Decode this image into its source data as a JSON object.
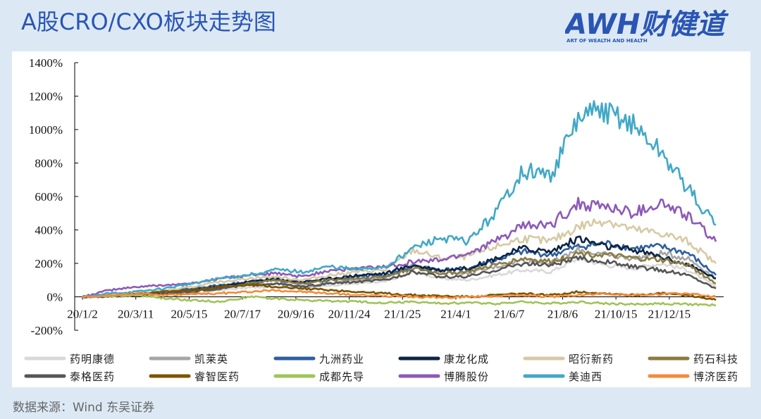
{
  "header": {
    "title": "A股CRO/CXO板块走势图",
    "logo_text": "AWH财健道",
    "logo_tagline": "ART OF WEALTH AND HEALTH"
  },
  "footer": {
    "source": "数据来源：Wind 东吴证券"
  },
  "colors": {
    "background": "#dce9f5",
    "title": "#2a55b4",
    "logo": "#2a55b4"
  },
  "chart_data": {
    "type": "line",
    "title": "",
    "xlabel": "",
    "ylabel": "",
    "ylim": [
      -200,
      1400
    ],
    "y_ticks": [
      "1400%",
      "1200%",
      "1000%",
      "800%",
      "600%",
      "400%",
      "200%",
      "0%",
      "-200%"
    ],
    "y_tick_values": [
      1400,
      1200,
      1000,
      800,
      600,
      400,
      200,
      0,
      -200
    ],
    "x_ticks": [
      "20/1/2",
      "20/3/11",
      "20/5/15",
      "20/7/17",
      "20/9/16",
      "20/11/24",
      "21/1/25",
      "21/4/1",
      "21/6/7",
      "21/8/6",
      "21/10/15",
      "21/12/15"
    ],
    "x": [
      "20/1/2",
      "20/2/6",
      "20/3/11",
      "20/4/13",
      "20/5/15",
      "20/6/16",
      "20/7/17",
      "20/8/17",
      "20/9/16",
      "20/10/20",
      "20/11/24",
      "20/12/24",
      "21/1/25",
      "21/3/1",
      "21/4/1",
      "21/5/6",
      "21/6/7",
      "21/7/7",
      "21/8/6",
      "21/9/10",
      "21/10/15",
      "21/11/15",
      "21/12/15",
      "22/1/10"
    ],
    "grid": false,
    "legend_position": "bottom",
    "series": [
      {
        "name": "药明康德",
        "color": "#d9d9d9",
        "values": [
          0,
          5,
          10,
          15,
          20,
          40,
          55,
          60,
          50,
          70,
          80,
          90,
          150,
          110,
          100,
          130,
          160,
          150,
          230,
          190,
          170,
          200,
          160,
          60
        ]
      },
      {
        "name": "凯莱英",
        "color": "#a6a6a6",
        "values": [
          0,
          5,
          10,
          20,
          40,
          60,
          70,
          80,
          60,
          80,
          100,
          110,
          200,
          150,
          140,
          180,
          220,
          200,
          280,
          250,
          230,
          260,
          230,
          110
        ]
      },
      {
        "name": "九洲药业",
        "color": "#2e5f9e",
        "values": [
          0,
          5,
          15,
          25,
          50,
          70,
          90,
          100,
          80,
          100,
          120,
          130,
          180,
          160,
          170,
          220,
          270,
          250,
          300,
          320,
          290,
          300,
          260,
          130
        ]
      },
      {
        "name": "康龙化成",
        "color": "#0d2444",
        "values": [
          0,
          5,
          10,
          20,
          40,
          60,
          90,
          110,
          90,
          110,
          130,
          140,
          190,
          160,
          170,
          230,
          290,
          270,
          350,
          300,
          280,
          240,
          190,
          110
        ]
      },
      {
        "name": "昭衍新药",
        "color": "#d6caa4",
        "values": [
          0,
          10,
          20,
          35,
          60,
          90,
          110,
          120,
          100,
          130,
          150,
          160,
          280,
          230,
          240,
          300,
          350,
          330,
          420,
          460,
          400,
          380,
          330,
          200
        ]
      },
      {
        "name": "药石科技",
        "color": "#8b7b41",
        "values": [
          0,
          5,
          10,
          20,
          30,
          50,
          80,
          100,
          80,
          100,
          110,
          120,
          170,
          140,
          150,
          190,
          230,
          210,
          260,
          250,
          230,
          220,
          190,
          80
        ]
      },
      {
        "name": "泰格医药",
        "color": "#555555",
        "values": [
          0,
          5,
          10,
          20,
          35,
          50,
          70,
          80,
          60,
          80,
          90,
          100,
          150,
          120,
          120,
          160,
          200,
          190,
          230,
          210,
          180,
          160,
          130,
          50
        ]
      },
      {
        "name": "睿智医药",
        "color": "#7a5500",
        "values": [
          0,
          10,
          20,
          30,
          40,
          60,
          70,
          60,
          50,
          40,
          30,
          20,
          10,
          5,
          0,
          10,
          20,
          10,
          30,
          20,
          10,
          20,
          10,
          -20
        ]
      },
      {
        "name": "成都先导",
        "color": "#9fc45a",
        "values": [
          0,
          5,
          10,
          -10,
          -20,
          -30,
          0,
          -10,
          -20,
          -25,
          -30,
          -35,
          -30,
          -40,
          -35,
          -40,
          -30,
          -40,
          -30,
          -40,
          -45,
          -40,
          -45,
          -50
        ]
      },
      {
        "name": "博腾股份",
        "color": "#8c5ab8",
        "values": [
          0,
          40,
          60,
          70,
          80,
          110,
          130,
          140,
          120,
          160,
          170,
          180,
          210,
          220,
          260,
          330,
          420,
          430,
          560,
          540,
          500,
          560,
          480,
          330
        ]
      },
      {
        "name": "美迪西",
        "color": "#42a8c7",
        "values": [
          0,
          20,
          30,
          50,
          80,
          110,
          130,
          160,
          150,
          180,
          160,
          180,
          290,
          350,
          330,
          500,
          760,
          720,
          1060,
          1120,
          1020,
          860,
          640,
          430
        ]
      },
      {
        "name": "博济医药",
        "color": "#f4893b",
        "values": [
          0,
          10,
          20,
          10,
          15,
          20,
          30,
          40,
          30,
          20,
          10,
          5,
          0,
          -5,
          0,
          5,
          10,
          0,
          10,
          20,
          10,
          15,
          20,
          0
        ]
      }
    ]
  }
}
